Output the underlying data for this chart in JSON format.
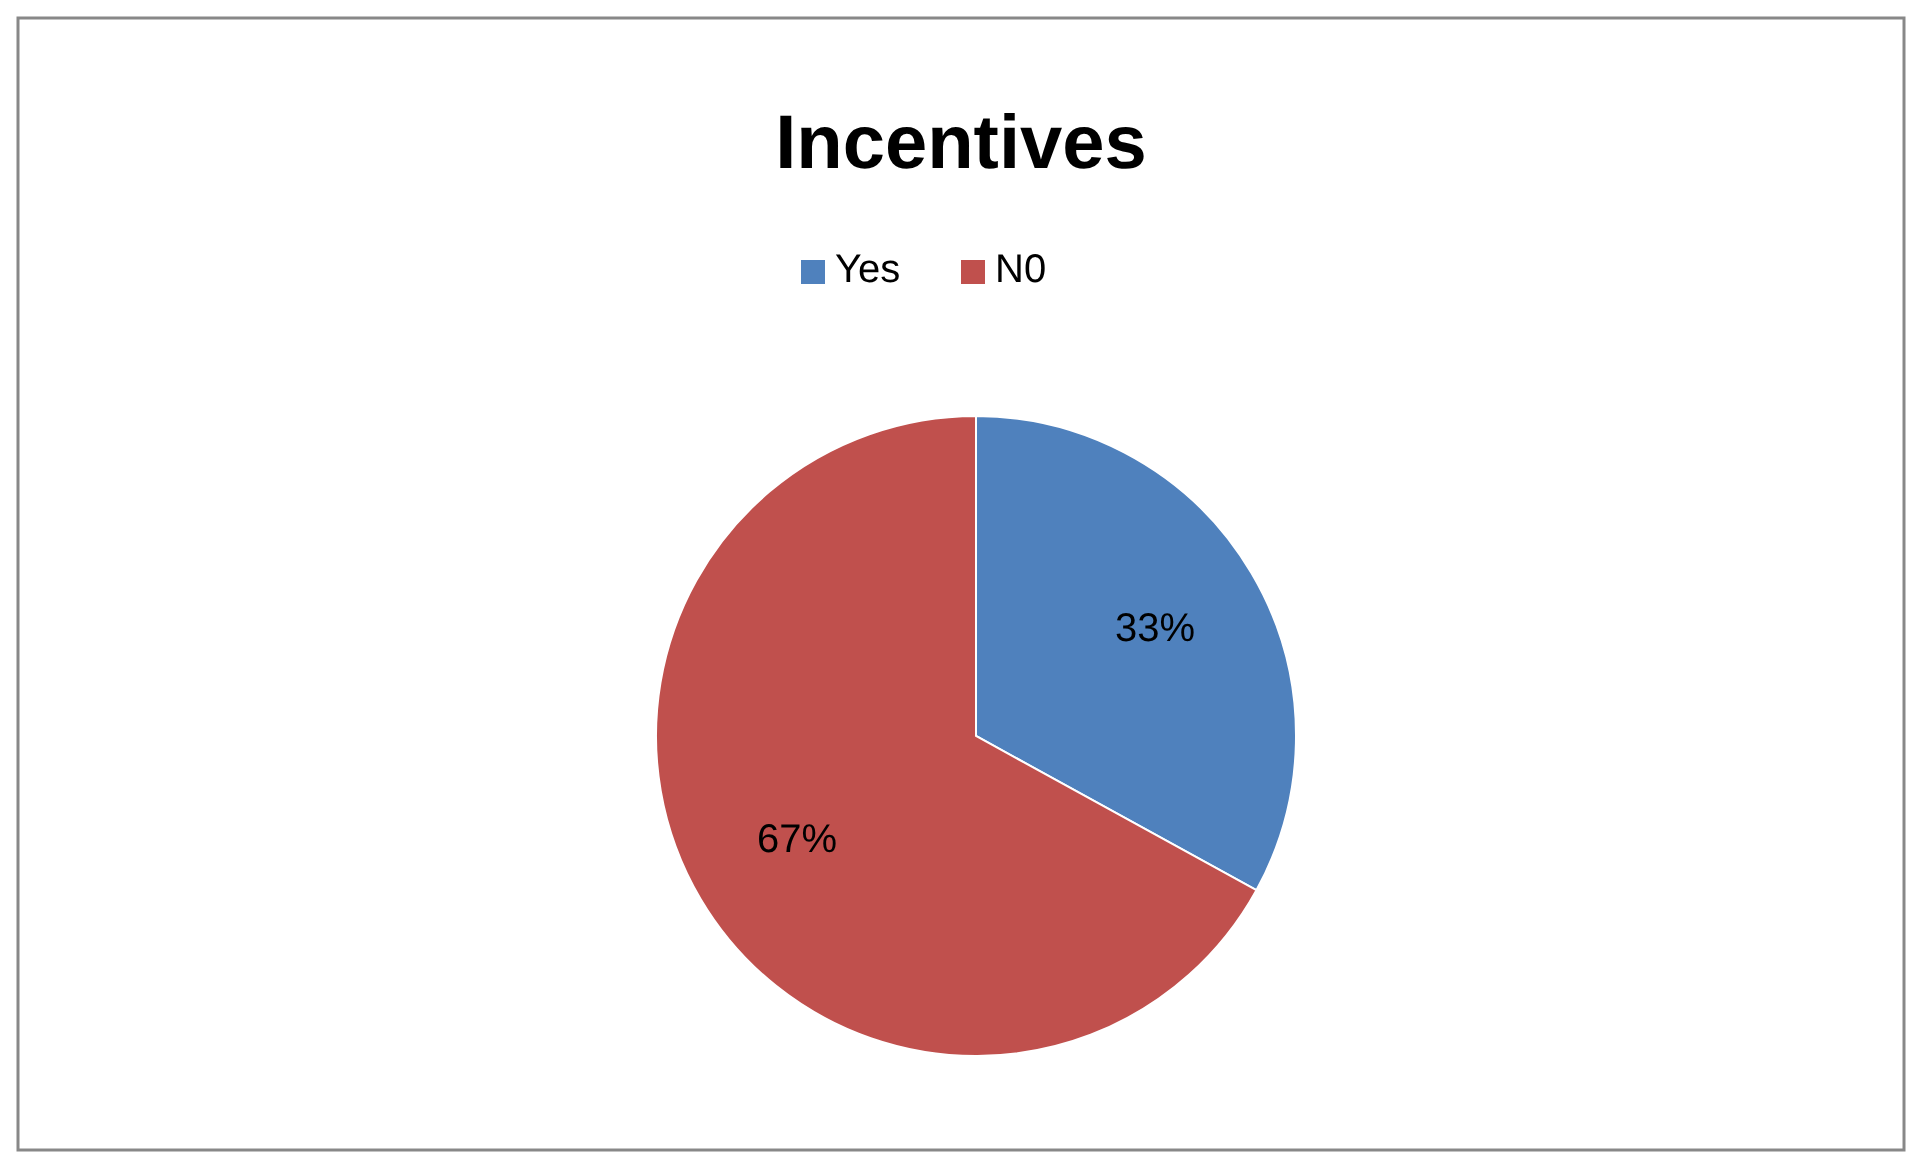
{
  "chart_data": {
    "type": "pie",
    "title": "Incentives",
    "categories": [
      "Yes",
      "N0"
    ],
    "values": [
      33,
      67
    ],
    "colors": [
      "#4f81bd",
      "#c0504d"
    ],
    "value_labels": [
      "33%",
      "67%"
    ],
    "legend": "top"
  }
}
